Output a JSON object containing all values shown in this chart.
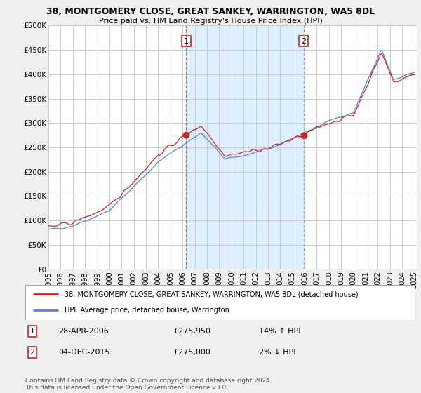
{
  "title": "38, MONTGOMERY CLOSE, GREAT SANKEY, WARRINGTON, WA5 8DL",
  "subtitle": "Price paid vs. HM Land Registry's House Price Index (HPI)",
  "legend_line1": "38, MONTGOMERY CLOSE, GREAT SANKEY, WARRINGTON, WA5 8DL (detached house)",
  "legend_line2": "HPI: Average price, detached house, Warrington",
  "annotation1_date": "28-APR-2006",
  "annotation1_price": "£275,950",
  "annotation1_hpi": "14% ↑ HPI",
  "annotation2_date": "04-DEC-2015",
  "annotation2_price": "£275,000",
  "annotation2_hpi": "2% ↓ HPI",
  "copyright": "Contains HM Land Registry data © Crown copyright and database right 2024.\nThis data is licensed under the Open Government Licence v3.0.",
  "sale1_year": 2006.3,
  "sale1_price": 275950,
  "sale2_year": 2015.92,
  "sale2_price": 275000,
  "ylim_min": 0,
  "ylim_max": 500000,
  "yticks": [
    0,
    50000,
    100000,
    150000,
    200000,
    250000,
    300000,
    350000,
    400000,
    450000,
    500000
  ],
  "ytick_labels": [
    "£0",
    "£50K",
    "£100K",
    "£150K",
    "£200K",
    "£250K",
    "£300K",
    "£350K",
    "£400K",
    "£450K",
    "£500K"
  ],
  "bg_color": "#f0f0f0",
  "plot_bg_color": "#ffffff",
  "shade_color": "#ddeeff",
  "red_color": "#cc2222",
  "blue_color": "#5588cc",
  "grid_color": "#cccccc",
  "vline1_color": "#dd4444",
  "vline2_color": "#999999"
}
